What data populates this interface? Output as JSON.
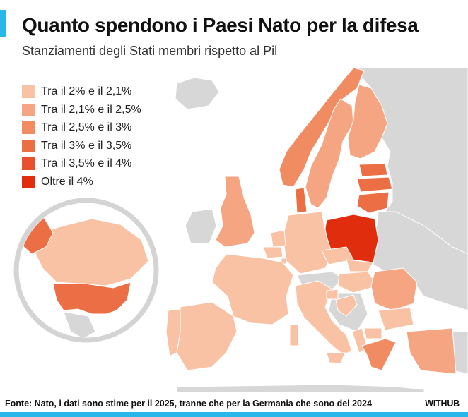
{
  "header": {
    "title": "Quanto spendono i Paesi Nato per la difesa",
    "subtitle": "Stanziamenti degli Stati membri rispetto al Pil"
  },
  "legend": {
    "items": [
      {
        "label": "Tra il 2% e il 2,1%",
        "color": "#f9c2a4"
      },
      {
        "label": "Tra il 2,1% e il 2,5%",
        "color": "#f6a582"
      },
      {
        "label": "Tra il 2,5% e il 3%",
        "color": "#f08b62"
      },
      {
        "label": "Tra il 3% e il 3,5%",
        "color": "#ec6e45"
      },
      {
        "label": "Tra il 3,5% e il 4%",
        "color": "#e8502e"
      },
      {
        "label": "Oltre il 4%",
        "color": "#e02d0d"
      }
    ]
  },
  "colors": {
    "accent": "#29b6e8",
    "non_member": "#d7d7d7",
    "inset_ring": "#d4d4d4",
    "country_border": "#ffffff"
  },
  "footer": {
    "source": "Fonte: Nato, i dati sono stime per il 2025, tranne che per la Germania che sono del 2024",
    "brand": "WITHUB"
  }
}
